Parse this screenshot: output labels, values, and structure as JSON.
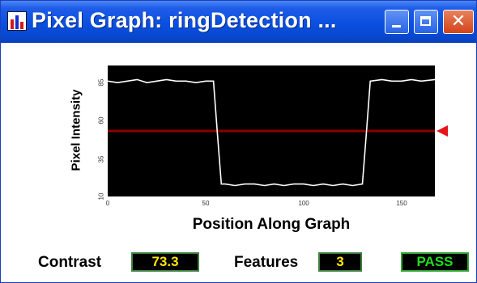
{
  "window": {
    "title": "Pixel Graph: ringDetection ...",
    "icons": {
      "app": "bar-chart-icon",
      "minimize": "minimize-icon",
      "maximize": "maximize-icon",
      "close": "close-icon"
    },
    "close_glyph": "✕"
  },
  "chart_data": {
    "type": "line",
    "xlabel": "Position Along Graph",
    "ylabel": "Pixel Intensity",
    "xlim": [
      0,
      167
    ],
    "ylim": [
      10,
      94
    ],
    "x_ticks": [
      "0",
      "50",
      "100",
      "150"
    ],
    "y_ticks": [
      "10",
      "35",
      "60",
      "85"
    ],
    "series": [
      {
        "color": "#ffffff",
        "points": [
          [
            0,
            84
          ],
          [
            5,
            83
          ],
          [
            10,
            84
          ],
          [
            15,
            85
          ],
          [
            20,
            83
          ],
          [
            25,
            84
          ],
          [
            30,
            85
          ],
          [
            35,
            84
          ],
          [
            40,
            84
          ],
          [
            45,
            83
          ],
          [
            50,
            84
          ],
          [
            54,
            84
          ],
          [
            56,
            50
          ],
          [
            58,
            18
          ],
          [
            60,
            18
          ],
          [
            65,
            17
          ],
          [
            70,
            18
          ],
          [
            75,
            18
          ],
          [
            80,
            17
          ],
          [
            85,
            18
          ],
          [
            90,
            17
          ],
          [
            95,
            18
          ],
          [
            100,
            18
          ],
          [
            105,
            17
          ],
          [
            110,
            18
          ],
          [
            115,
            17
          ],
          [
            120,
            18
          ],
          [
            125,
            17
          ],
          [
            130,
            18
          ],
          [
            132,
            50
          ],
          [
            134,
            84
          ],
          [
            140,
            85
          ],
          [
            145,
            84
          ],
          [
            150,
            84
          ],
          [
            155,
            85
          ],
          [
            160,
            84
          ],
          [
            167,
            85
          ]
        ]
      }
    ],
    "threshold": {
      "value": 52,
      "color": "#8b0000"
    },
    "marker_color": "#e4141b"
  },
  "status": {
    "contrast_label": "Contrast",
    "contrast_value": "73.3",
    "features_label": "Features",
    "features_value": "3",
    "result": "PASS"
  }
}
